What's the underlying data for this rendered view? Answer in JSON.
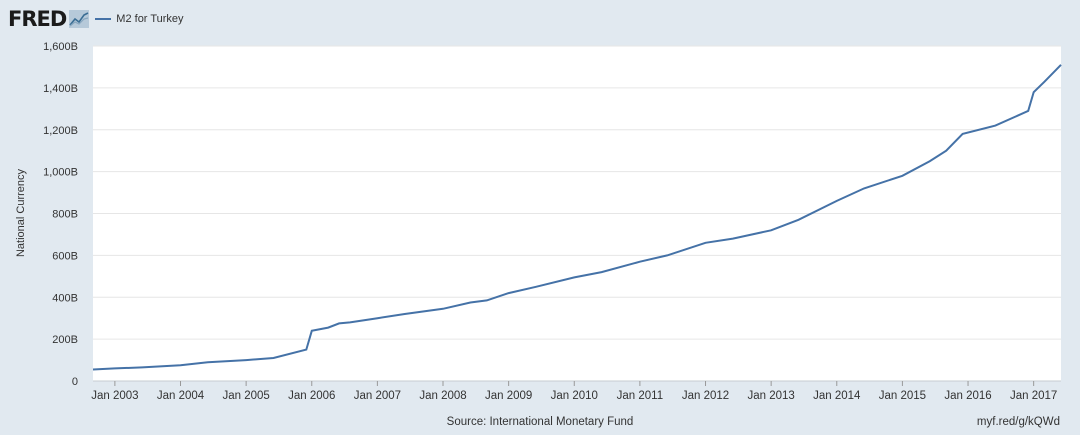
{
  "header": {
    "logo_text": "FRED",
    "legend_series": "M2 for Turkey",
    "series_color": "#4572a7"
  },
  "footer": {
    "source": "Source: International Monetary Fund",
    "link": "myf.red/g/kQWd"
  },
  "chart_data": {
    "type": "line",
    "ylabel": "National Currency",
    "xlabel": "",
    "ylim": [
      0,
      1600
    ],
    "yticks": [
      0,
      200,
      400,
      600,
      800,
      1000,
      1200,
      1400,
      1600
    ],
    "ytick_labels": [
      "0",
      "200B",
      "400B",
      "600B",
      "800B",
      "1,000B",
      "1,200B",
      "1,400B",
      "1,600B"
    ],
    "xlim": [
      "2002-09",
      "2017-06"
    ],
    "xtick_labels": [
      "Jan 2003",
      "Jan 2004",
      "Jan 2005",
      "Jan 2006",
      "Jan 2007",
      "Jan 2008",
      "Jan 2009",
      "Jan 2010",
      "Jan 2011",
      "Jan 2012",
      "Jan 2013",
      "Jan 2014",
      "Jan 2015",
      "Jan 2016",
      "Jan 2017"
    ],
    "grid": true,
    "series": [
      {
        "name": "M2 for Turkey",
        "x": [
          "2002-09",
          "2003-01",
          "2003-06",
          "2004-01",
          "2004-06",
          "2005-01",
          "2005-06",
          "2005-12",
          "2006-01",
          "2006-04",
          "2006-06",
          "2006-08",
          "2007-01",
          "2007-06",
          "2008-01",
          "2008-06",
          "2008-09",
          "2009-01",
          "2009-06",
          "2010-01",
          "2010-06",
          "2011-01",
          "2011-06",
          "2012-01",
          "2012-06",
          "2013-01",
          "2013-06",
          "2014-01",
          "2014-06",
          "2015-01",
          "2015-06",
          "2015-09",
          "2015-12",
          "2016-06",
          "2016-12",
          "2017-01",
          "2017-03",
          "2017-06"
        ],
        "y": [
          55,
          60,
          65,
          75,
          90,
          100,
          110,
          150,
          240,
          255,
          275,
          280,
          300,
          320,
          345,
          375,
          385,
          420,
          450,
          495,
          520,
          570,
          600,
          660,
          680,
          720,
          770,
          860,
          920,
          980,
          1050,
          1100,
          1180,
          1220,
          1290,
          1380,
          1430,
          1510
        ]
      }
    ]
  }
}
